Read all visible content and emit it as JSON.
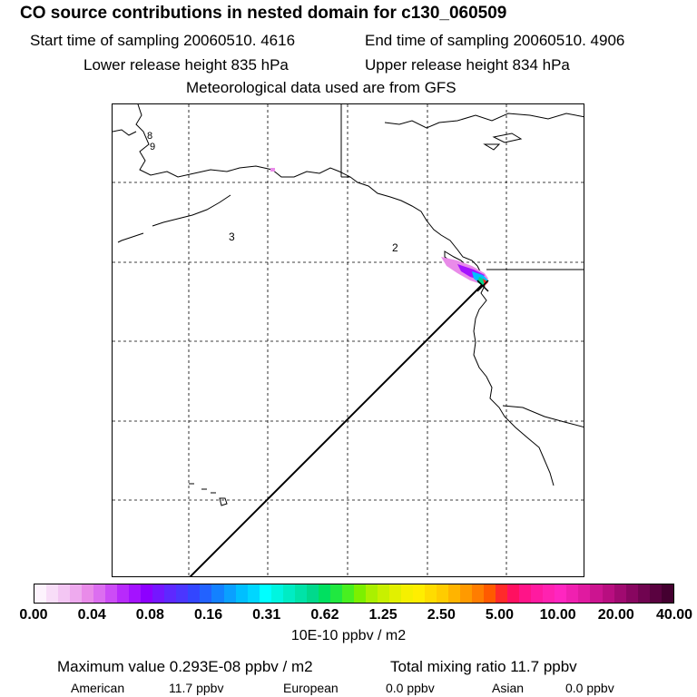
{
  "header": {
    "title": "CO  source contributions in nested domain for c130_060509",
    "start_time": "Start time of sampling 20060510.  4616",
    "end_time": "End time of sampling 20060510.  4906",
    "lower_release": "Lower release height  835 hPa",
    "upper_release": "Upper release height  834 hPa",
    "met_data": "Meteorological data used are from GFS"
  },
  "map": {
    "labels": [
      "8",
      "9",
      "3",
      "2"
    ]
  },
  "colorbar": {
    "tick_labels": [
      "0.00",
      "0.04",
      "0.08",
      "0.16",
      "0.31",
      "0.62",
      "1.25",
      "2.50",
      "5.00",
      "10.00",
      "20.00",
      "40.00"
    ],
    "colors": [
      "#fdf3fd",
      "#f8ddf8",
      "#f3c6f3",
      "#eeaaee",
      "#e98be9",
      "#dc6ef0",
      "#cc4cf6",
      "#b82afb",
      "#a412ff",
      "#8d00ff",
      "#7516ff",
      "#5e28ff",
      "#4b36ff",
      "#3346ff",
      "#2262ff",
      "#1381ff",
      "#0aa0ff",
      "#00bfff",
      "#00d6ff",
      "#00ffff",
      "#00f5e0",
      "#00ecc4",
      "#00e3a8",
      "#00d98c",
      "#00e060",
      "#20e840",
      "#48f020",
      "#7cf000",
      "#aaf000",
      "#c8f000",
      "#e2f000",
      "#f5f000",
      "#ffee00",
      "#ffdc00",
      "#ffcc00",
      "#ffb400",
      "#ff9a00",
      "#ff7d00",
      "#ff5a00",
      "#ff2a2a",
      "#ff1060",
      "#ff1488",
      "#ff1aa0",
      "#ff22b0",
      "#ff26c0",
      "#f020b0",
      "#e01aa0",
      "#cc1490",
      "#b80e80",
      "#a00a70",
      "#880660",
      "#700450",
      "#5a0240",
      "#440030"
    ],
    "units": "10E-10 ppbv / m2"
  },
  "summary": {
    "max_value": "Maximum value  0.293E-08 ppbv / m2",
    "total_mixing": "Total mixing ratio      11.7 ppbv",
    "american_label": "American",
    "american_value": "11.7 ppbv",
    "european_label": "European",
    "european_value": "0.0 ppbv",
    "asian_label": "Asian",
    "asian_value": "0.0 ppbv"
  }
}
